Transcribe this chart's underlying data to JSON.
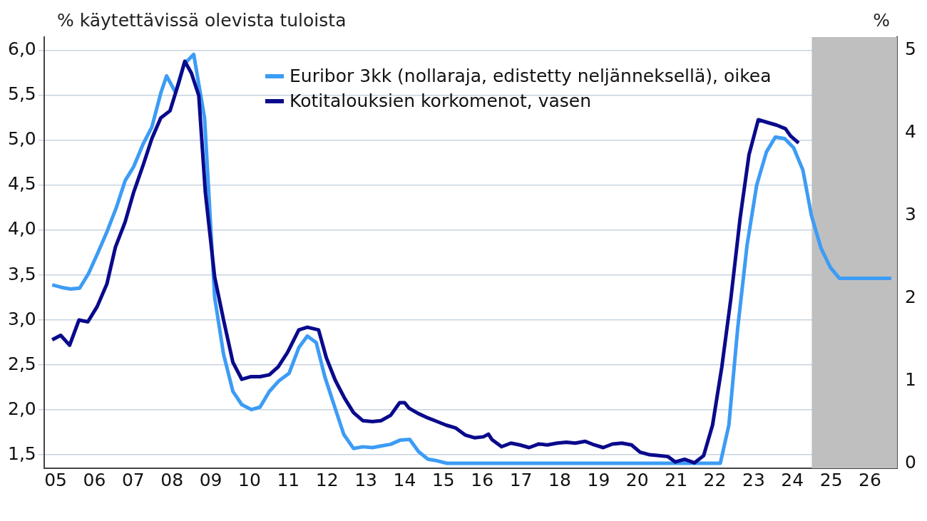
{
  "chart_data": {
    "type": "line",
    "ylabel": "% käytettävissä olevista tuloista",
    "y2label": "%",
    "xlim": [
      4.7,
      26.7
    ],
    "xticks": [
      {
        "value": 5,
        "label": "05"
      },
      {
        "value": 6,
        "label": "06"
      },
      {
        "value": 7,
        "label": "07"
      },
      {
        "value": 8,
        "label": "08"
      },
      {
        "value": 9,
        "label": "09"
      },
      10,
      11,
      12,
      13,
      14,
      15,
      16,
      17,
      18,
      19,
      20,
      21,
      22,
      23,
      24,
      25,
      26
    ],
    "ylim": [
      1.35,
      6.15
    ],
    "yticks": [
      {
        "value": 1.5,
        "label": "1,5"
      },
      {
        "value": 2,
        "label": "2,0"
      },
      {
        "value": 2.5,
        "label": "2,5"
      },
      {
        "value": 3,
        "label": "3,0"
      },
      {
        "value": 3.5,
        "label": "3,5"
      },
      {
        "value": 4,
        "label": "4,0"
      },
      {
        "value": 4.5,
        "label": "4,5"
      },
      {
        "value": 5,
        "label": "5,0"
      },
      {
        "value": 5.5,
        "label": "5,5"
      },
      {
        "value": 6,
        "label": "6,0"
      }
    ],
    "y2lim": [
      -0.06,
      5.16
    ],
    "y2ticks": [
      0,
      1,
      2,
      3,
      4,
      5
    ],
    "grid": "y",
    "legend": "top",
    "line_style": "solid",
    "marker": "none",
    "bands": [
      {
        "axis": "x",
        "from": 24.5,
        "to": 26.7,
        "color": "#bfbfbf"
      }
    ],
    "series": [
      {
        "name": "Euribor 3kk (nollaraja, edistetty neljänneksellä), oikea",
        "color": "#3d9cf5",
        "axis": "y2",
        "x": [
          4.91,
          5.15,
          5.38,
          5.62,
          5.85,
          6.09,
          6.32,
          6.56,
          6.79,
          7.01,
          7.26,
          7.48,
          7.71,
          7.86,
          8.09,
          8.31,
          8.56,
          8.84,
          9.1,
          9.33,
          9.57,
          9.8,
          10.05,
          10.27,
          10.51,
          10.76,
          11.02,
          11.27,
          11.49,
          11.72,
          11.94,
          12.19,
          12.43,
          12.68,
          12.92,
          13.17,
          13.39,
          13.64,
          13.88,
          14.13,
          14.36,
          14.6,
          14.84,
          15.09,
          22.09,
          22.14,
          22.36,
          22.59,
          22.83,
          23.08,
          23.33,
          23.56,
          23.8,
          24.03,
          24.27,
          24.49,
          24.74,
          24.98,
          25.21,
          25.46,
          26.55
        ],
        "values": [
          2.16,
          2.13,
          2.11,
          2.12,
          2.3,
          2.55,
          2.8,
          3.09,
          3.42,
          3.59,
          3.87,
          4.07,
          4.48,
          4.69,
          4.49,
          4.83,
          4.95,
          4.18,
          2.01,
          1.32,
          0.87,
          0.71,
          0.65,
          0.68,
          0.87,
          1.0,
          1.09,
          1.4,
          1.54,
          1.46,
          1.05,
          0.69,
          0.35,
          0.18,
          0.2,
          0.19,
          0.21,
          0.23,
          0.28,
          0.29,
          0.14,
          0.05,
          0.03,
          0,
          0,
          0,
          0.46,
          1.64,
          2.64,
          3.37,
          3.77,
          3.95,
          3.93,
          3.82,
          3.55,
          3.0,
          2.6,
          2.37,
          2.24,
          2.24,
          2.24
        ]
      },
      {
        "name": "Kotitalouksien korkomenot, vasen",
        "color": "#0a0a8c",
        "axis": "y",
        "x": [
          4.91,
          5.13,
          5.36,
          5.6,
          5.83,
          6.07,
          6.32,
          6.54,
          6.79,
          7.01,
          7.26,
          7.48,
          7.71,
          7.95,
          8.18,
          8.33,
          8.5,
          8.69,
          8.86,
          9.1,
          9.33,
          9.57,
          9.8,
          10.04,
          10.27,
          10.51,
          10.74,
          10.98,
          11.27,
          11.49,
          11.78,
          11.98,
          12.21,
          12.45,
          12.68,
          12.92,
          13.17,
          13.39,
          13.64,
          13.87,
          14.0,
          14.11,
          14.35,
          14.6,
          14.84,
          15.07,
          15.31,
          15.56,
          15.8,
          16.03,
          16.16,
          16.25,
          16.5,
          16.74,
          16.97,
          17.21,
          17.46,
          17.68,
          17.93,
          18.17,
          18.4,
          18.65,
          18.89,
          19.12,
          19.36,
          19.6,
          19.85,
          20.07,
          20.32,
          20.56,
          20.79,
          20.98,
          21.22,
          21.47,
          21.71,
          21.94,
          22.18,
          22.41,
          22.65,
          22.88,
          23.12,
          23.35,
          23.59,
          23.82,
          23.95,
          24.16
        ],
        "values": [
          2.78,
          2.83,
          2.72,
          3.0,
          2.98,
          3.15,
          3.4,
          3.81,
          4.09,
          4.42,
          4.73,
          5.02,
          5.25,
          5.33,
          5.65,
          5.88,
          5.75,
          5.5,
          4.42,
          3.48,
          3.0,
          2.53,
          2.34,
          2.37,
          2.37,
          2.39,
          2.48,
          2.64,
          2.89,
          2.92,
          2.89,
          2.58,
          2.33,
          2.13,
          1.97,
          1.88,
          1.87,
          1.88,
          1.94,
          2.08,
          2.08,
          2.02,
          1.96,
          1.91,
          1.87,
          1.83,
          1.8,
          1.72,
          1.69,
          1.7,
          1.73,
          1.67,
          1.59,
          1.63,
          1.61,
          1.58,
          1.62,
          1.61,
          1.63,
          1.64,
          1.63,
          1.65,
          1.61,
          1.58,
          1.62,
          1.63,
          1.61,
          1.53,
          1.5,
          1.49,
          1.48,
          1.42,
          1.45,
          1.41,
          1.49,
          1.83,
          2.48,
          3.23,
          4.13,
          4.84,
          5.23,
          5.2,
          5.17,
          5.13,
          5.05,
          4.97
        ]
      }
    ]
  }
}
